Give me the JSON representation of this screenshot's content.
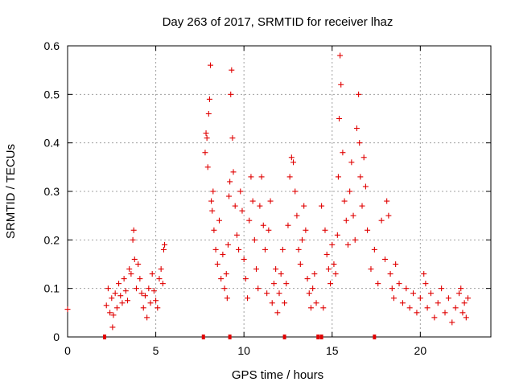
{
  "chart_data": {
    "type": "scatter",
    "title": "Day 263 of 2017, SRMTID for receiver lhaz",
    "xlabel": "GPS time / hours",
    "ylabel": "SRMTID / TECUs",
    "xlim": [
      0,
      24
    ],
    "ylim": [
      0,
      0.6
    ],
    "x_ticks": [
      0,
      5,
      10,
      15,
      20
    ],
    "x_tick_labels": [
      "0",
      "5",
      "10",
      "15",
      "20"
    ],
    "y_ticks": [
      0,
      0.1,
      0.2,
      0.3,
      0.4,
      0.5,
      0.6
    ],
    "y_tick_labels": [
      "0",
      "0.1",
      "0.2",
      "0.3",
      "0.4",
      "0.5",
      "0.6"
    ],
    "grid": true,
    "marker": "plus",
    "marker_color": "#e00000",
    "series": [
      {
        "name": "SRMTID",
        "points": [
          [
            0.0,
            0.057
          ],
          [
            2.2,
            0.065
          ],
          [
            2.3,
            0.1
          ],
          [
            2.4,
            0.05
          ],
          [
            2.5,
            0.08
          ],
          [
            2.6,
            0.045
          ],
          [
            2.7,
            0.09
          ],
          [
            2.8,
            0.06
          ],
          [
            2.9,
            0.11
          ],
          [
            2.55,
            0.02
          ],
          [
            3.0,
            0.085
          ],
          [
            3.1,
            0.07
          ],
          [
            3.2,
            0.12
          ],
          [
            3.3,
            0.095
          ],
          [
            3.4,
            0.075
          ],
          [
            3.5,
            0.14
          ],
          [
            3.6,
            0.13
          ],
          [
            3.7,
            0.2
          ],
          [
            3.75,
            0.22
          ],
          [
            3.8,
            0.16
          ],
          [
            3.9,
            0.1
          ],
          [
            4.0,
            0.15
          ],
          [
            4.1,
            0.12
          ],
          [
            4.2,
            0.09
          ],
          [
            4.3,
            0.06
          ],
          [
            4.4,
            0.085
          ],
          [
            4.5,
            0.04
          ],
          [
            4.6,
            0.1
          ],
          [
            4.7,
            0.07
          ],
          [
            4.8,
            0.13
          ],
          [
            4.9,
            0.095
          ],
          [
            5.0,
            0.075
          ],
          [
            5.1,
            0.06
          ],
          [
            5.2,
            0.12
          ],
          [
            5.3,
            0.14
          ],
          [
            5.4,
            0.11
          ],
          [
            5.5,
            0.19
          ],
          [
            5.45,
            0.18
          ],
          [
            7.8,
            0.38
          ],
          [
            7.85,
            0.42
          ],
          [
            7.9,
            0.41
          ],
          [
            7.95,
            0.35
          ],
          [
            8.0,
            0.46
          ],
          [
            8.05,
            0.49
          ],
          [
            8.1,
            0.56
          ],
          [
            8.15,
            0.28
          ],
          [
            8.2,
            0.26
          ],
          [
            8.25,
            0.3
          ],
          [
            8.3,
            0.22
          ],
          [
            8.4,
            0.18
          ],
          [
            8.5,
            0.15
          ],
          [
            8.6,
            0.24
          ],
          [
            8.7,
            0.12
          ],
          [
            8.8,
            0.17
          ],
          [
            8.9,
            0.1
          ],
          [
            9.0,
            0.13
          ],
          [
            9.05,
            0.08
          ],
          [
            9.1,
            0.19
          ],
          [
            9.15,
            0.29
          ],
          [
            9.2,
            0.32
          ],
          [
            9.25,
            0.5
          ],
          [
            9.3,
            0.55
          ],
          [
            9.35,
            0.41
          ],
          [
            9.4,
            0.34
          ],
          [
            9.5,
            0.27
          ],
          [
            9.6,
            0.21
          ],
          [
            9.7,
            0.18
          ],
          [
            9.8,
            0.3
          ],
          [
            9.9,
            0.26
          ],
          [
            10.0,
            0.16
          ],
          [
            10.1,
            0.12
          ],
          [
            10.2,
            0.08
          ],
          [
            10.3,
            0.24
          ],
          [
            10.4,
            0.33
          ],
          [
            10.5,
            0.28
          ],
          [
            10.6,
            0.2
          ],
          [
            10.7,
            0.14
          ],
          [
            10.8,
            0.1
          ],
          [
            10.9,
            0.27
          ],
          [
            11.0,
            0.33
          ],
          [
            11.1,
            0.23
          ],
          [
            11.2,
            0.18
          ],
          [
            11.3,
            0.09
          ],
          [
            11.4,
            0.22
          ],
          [
            11.5,
            0.28
          ],
          [
            11.6,
            0.07
          ],
          [
            11.7,
            0.11
          ],
          [
            11.8,
            0.14
          ],
          [
            11.9,
            0.05
          ],
          [
            12.0,
            0.09
          ],
          [
            12.1,
            0.13
          ],
          [
            12.2,
            0.18
          ],
          [
            12.3,
            0.07
          ],
          [
            12.4,
            0.11
          ],
          [
            12.5,
            0.23
          ],
          [
            12.6,
            0.33
          ],
          [
            12.7,
            0.37
          ],
          [
            12.8,
            0.36
          ],
          [
            12.9,
            0.3
          ],
          [
            13.0,
            0.25
          ],
          [
            13.1,
            0.18
          ],
          [
            13.2,
            0.15
          ],
          [
            13.3,
            0.2
          ],
          [
            13.4,
            0.27
          ],
          [
            13.5,
            0.22
          ],
          [
            13.6,
            0.12
          ],
          [
            13.7,
            0.09
          ],
          [
            13.8,
            0.06
          ],
          [
            13.9,
            0.1
          ],
          [
            14.0,
            0.13
          ],
          [
            14.1,
            0.07
          ],
          [
            14.4,
            0.27
          ],
          [
            14.5,
            0.06
          ],
          [
            14.6,
            0.22
          ],
          [
            14.7,
            0.17
          ],
          [
            14.8,
            0.14
          ],
          [
            14.9,
            0.11
          ],
          [
            15.0,
            0.19
          ],
          [
            15.1,
            0.15
          ],
          [
            15.2,
            0.13
          ],
          [
            15.3,
            0.21
          ],
          [
            15.35,
            0.33
          ],
          [
            15.4,
            0.45
          ],
          [
            15.45,
            0.58
          ],
          [
            15.5,
            0.52
          ],
          [
            15.6,
            0.38
          ],
          [
            15.7,
            0.28
          ],
          [
            15.8,
            0.24
          ],
          [
            15.9,
            0.19
          ],
          [
            16.0,
            0.3
          ],
          [
            16.1,
            0.36
          ],
          [
            16.2,
            0.25
          ],
          [
            16.3,
            0.2
          ],
          [
            16.4,
            0.43
          ],
          [
            16.5,
            0.5
          ],
          [
            16.55,
            0.4
          ],
          [
            16.6,
            0.33
          ],
          [
            16.7,
            0.27
          ],
          [
            16.8,
            0.37
          ],
          [
            16.9,
            0.31
          ],
          [
            17.0,
            0.22
          ],
          [
            17.2,
            0.14
          ],
          [
            17.4,
            0.18
          ],
          [
            17.6,
            0.11
          ],
          [
            17.8,
            0.24
          ],
          [
            18.0,
            0.16
          ],
          [
            18.1,
            0.28
          ],
          [
            18.2,
            0.25
          ],
          [
            18.3,
            0.13
          ],
          [
            18.4,
            0.1
          ],
          [
            18.5,
            0.08
          ],
          [
            18.6,
            0.15
          ],
          [
            18.8,
            0.11
          ],
          [
            19.0,
            0.07
          ],
          [
            19.2,
            0.1
          ],
          [
            19.4,
            0.06
          ],
          [
            19.6,
            0.09
          ],
          [
            19.8,
            0.05
          ],
          [
            20.0,
            0.08
          ],
          [
            20.2,
            0.13
          ],
          [
            20.3,
            0.11
          ],
          [
            20.4,
            0.06
          ],
          [
            20.6,
            0.09
          ],
          [
            20.8,
            0.04
          ],
          [
            21.0,
            0.07
          ],
          [
            21.2,
            0.1
          ],
          [
            21.4,
            0.05
          ],
          [
            21.6,
            0.08
          ],
          [
            21.8,
            0.03
          ],
          [
            22.0,
            0.06
          ],
          [
            22.2,
            0.09
          ],
          [
            22.3,
            0.1
          ],
          [
            22.4,
            0.05
          ],
          [
            22.5,
            0.07
          ],
          [
            22.6,
            0.04
          ],
          [
            22.7,
            0.08
          ]
        ]
      }
    ],
    "baseline_markers_x": [
      2.1,
      7.7,
      9.2,
      12.3,
      14.2,
      14.4,
      17.4
    ]
  }
}
